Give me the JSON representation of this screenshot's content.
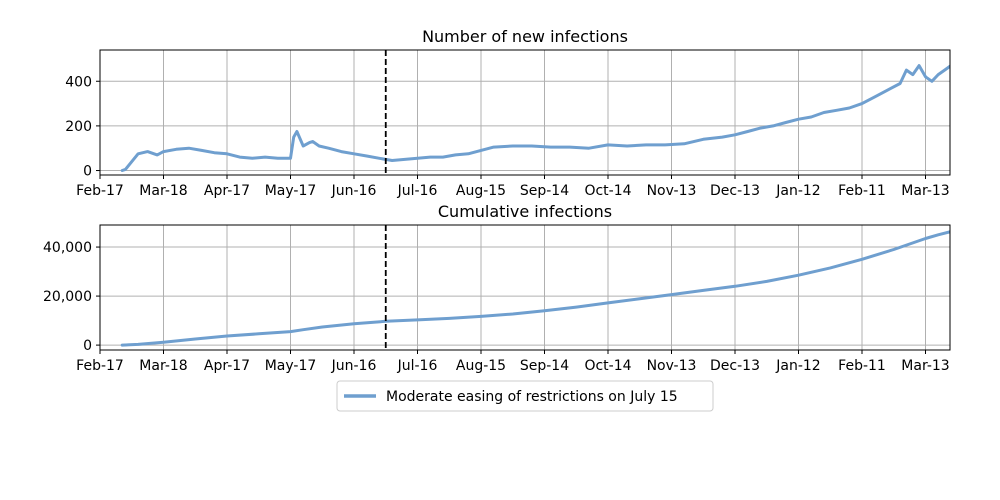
{
  "chart_data": [
    {
      "type": "line",
      "title": "Number of new infections",
      "xlabel": "",
      "ylabel": "",
      "x_ticks": [
        "Feb-17",
        "Mar-18",
        "Apr-17",
        "May-17",
        "Jun-16",
        "Jul-16",
        "Aug-15",
        "Sep-14",
        "Oct-14",
        "Nov-13",
        "Dec-13",
        "Jan-12",
        "Feb-11",
        "Mar-13"
      ],
      "y_ticks": [
        "0",
        "200",
        "400"
      ],
      "ylim": [
        -20,
        540
      ],
      "grid": true,
      "vline_tick_position": 4.5,
      "series": [
        {
          "name": "Moderate easing of restrictions on July 15",
          "x": [
            0.35,
            0.4,
            0.5,
            0.6,
            0.75,
            0.9,
            1.0,
            1.2,
            1.4,
            1.6,
            1.8,
            2.0,
            2.2,
            2.4,
            2.6,
            2.8,
            3.0,
            3.05,
            3.1,
            3.2,
            3.3,
            3.35,
            3.45,
            3.6,
            3.8,
            4.0,
            4.2,
            4.4,
            4.6,
            4.8,
            5.0,
            5.2,
            5.4,
            5.6,
            5.8,
            6.0,
            6.2,
            6.5,
            6.8,
            7.1,
            7.4,
            7.7,
            8.0,
            8.3,
            8.6,
            8.9,
            9.2,
            9.5,
            9.8,
            10.0,
            10.2,
            10.4,
            10.6,
            10.8,
            11.0,
            11.2,
            11.4,
            11.6,
            11.8,
            12.0,
            12.2,
            12.4,
            12.6,
            12.7,
            12.8,
            12.9,
            13.0,
            13.1,
            13.2,
            13.3,
            13.4,
            13.5
          ],
          "values": [
            0,
            5,
            40,
            75,
            85,
            70,
            85,
            95,
            100,
            90,
            80,
            75,
            60,
            55,
            60,
            55,
            55,
            150,
            175,
            110,
            125,
            130,
            110,
            100,
            85,
            75,
            65,
            55,
            45,
            50,
            55,
            60,
            60,
            70,
            75,
            90,
            105,
            110,
            110,
            105,
            105,
            100,
            115,
            110,
            115,
            115,
            120,
            140,
            150,
            160,
            175,
            190,
            200,
            215,
            230,
            240,
            260,
            270,
            280,
            300,
            330,
            360,
            390,
            450,
            430,
            470,
            420,
            400,
            430,
            450,
            470,
            520
          ]
        }
      ]
    },
    {
      "type": "line",
      "title": "Cumulative infections",
      "xlabel": "",
      "ylabel": "",
      "x_ticks": [
        "Feb-17",
        "Mar-18",
        "Apr-17",
        "May-17",
        "Jun-16",
        "Jul-16",
        "Aug-15",
        "Sep-14",
        "Oct-14",
        "Nov-13",
        "Dec-13",
        "Jan-12",
        "Feb-11",
        "Mar-13"
      ],
      "y_ticks": [
        "0",
        "20,000",
        "40,000"
      ],
      "ylim": [
        -2000,
        49000
      ],
      "grid": true,
      "vline_tick_position": 4.5,
      "series": [
        {
          "name": "Moderate easing of restrictions on July 15",
          "x": [
            0.35,
            0.6,
            1.0,
            1.5,
            2.0,
            2.5,
            3.0,
            3.2,
            3.5,
            4.0,
            4.5,
            5.0,
            5.5,
            6.0,
            6.5,
            7.0,
            7.5,
            8.0,
            8.5,
            9.0,
            9.5,
            10.0,
            10.5,
            11.0,
            11.5,
            12.0,
            12.5,
            13.0,
            13.2,
            13.5
          ],
          "values": [
            0,
            300,
            1200,
            2500,
            3700,
            4600,
            5500,
            6300,
            7400,
            8700,
            9700,
            10300,
            10900,
            11700,
            12700,
            14000,
            15500,
            17200,
            18900,
            20600,
            22300,
            24000,
            26000,
            28500,
            31500,
            35000,
            39000,
            43500,
            45000,
            47000
          ]
        }
      ]
    }
  ],
  "legend": {
    "placement": "bottom-center",
    "entries": [
      "Moderate easing of restrictions on July 15"
    ]
  },
  "colors": {
    "line": "#6f9fcf",
    "vline": "#000000",
    "grid": "#b0b0b0",
    "axes": "#000000"
  }
}
